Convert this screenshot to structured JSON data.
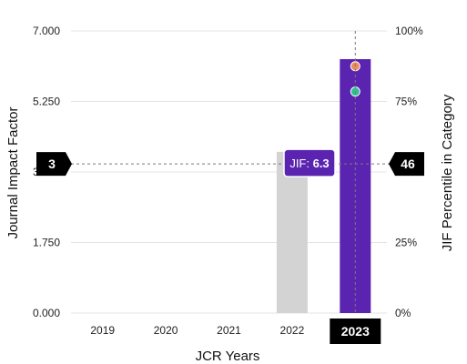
{
  "chart_data": {
    "type": "bar",
    "xlabel": "JCR Years",
    "ylabel_left": "Journal Impact Factor",
    "ylabel_right": "JIF Percentile in Category",
    "categories": [
      "2019",
      "2020",
      "2021",
      "2022",
      "2023"
    ],
    "selected_category": "2023",
    "y_left_ticks": [
      "0.000",
      "1.750",
      "3.500",
      "5.250",
      "7.000"
    ],
    "y_left_range": [
      0,
      7
    ],
    "y_right_ticks": [
      "0%",
      "25%",
      "50%",
      "75%",
      "100%"
    ],
    "y_right_range": [
      0,
      100
    ],
    "grid": true,
    "series": [
      {
        "values": [
          null,
          null,
          null,
          4.0,
          6.3
        ],
        "colors": [
          "#d3d3d3",
          "#d3d3d3",
          "#d3d3d3",
          "#d3d3d3",
          "#5a24b0"
        ]
      }
    ],
    "percentile_markers": [
      {
        "category": "2023",
        "percentile": 87.5,
        "color": "#ef8a5a"
      },
      {
        "category": "2023",
        "percentile": 78.5,
        "color": "#2ec28f"
      }
    ],
    "tooltip": {
      "label": "JIF:",
      "value": "6.3"
    },
    "crosshair": {
      "left_value": 3.7,
      "left_badge": "3",
      "right_badge": "46"
    }
  }
}
